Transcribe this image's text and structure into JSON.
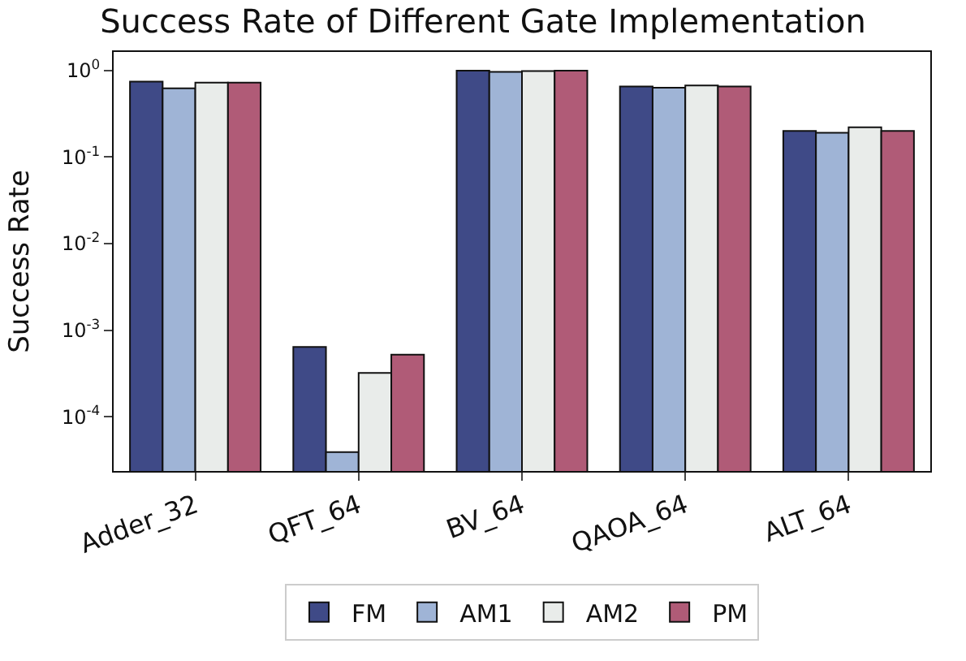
{
  "chart_data": {
    "type": "bar",
    "title": "Success Rate of Different Gate Implementation",
    "ylabel": "Success Rate",
    "categories": [
      "Adder_32",
      "QFT_64",
      "BV_64",
      "QAOA_64",
      "ALT_64"
    ],
    "series": [
      {
        "name": "FM",
        "color": "#3f4a87",
        "values": [
          0.74,
          0.00064,
          0.99,
          0.65,
          0.2
        ]
      },
      {
        "name": "AM1",
        "color": "#9fb4d6",
        "values": [
          0.62,
          3.9e-05,
          0.96,
          0.63,
          0.19
        ]
      },
      {
        "name": "AM2",
        "color": "#e9ecea",
        "values": [
          0.72,
          0.00032,
          0.98,
          0.67,
          0.22
        ]
      },
      {
        "name": "PM",
        "color": "#b05b77",
        "values": [
          0.72,
          0.00052,
          0.99,
          0.65,
          0.2
        ]
      }
    ],
    "log": true,
    "ylim": [
      2.36e-05,
      1.63
    ],
    "yticks": [
      {
        "value": 0.0001,
        "label": "10$^{-4}$"
      },
      {
        "value": 0.001,
        "label": "10$^{-3}$"
      },
      {
        "value": 0.01,
        "label": "10$^{-2}$"
      },
      {
        "value": 0.1,
        "label": "10$^{-1}$"
      },
      {
        "value": 1,
        "label": "10$^{0}$"
      }
    ],
    "legend": "bottom"
  }
}
